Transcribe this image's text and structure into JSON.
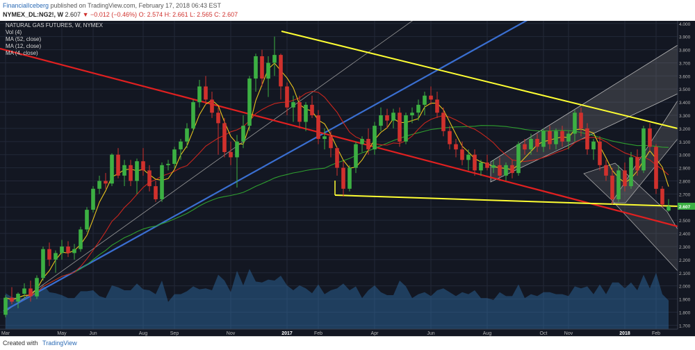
{
  "header": {
    "publisher": "FinancialIceberg",
    "published_text": "published on TradingView.com, February 17, 2018 06:43 EST",
    "symbol": "NYMEX_DL:NG2!, W",
    "price": "2.607",
    "change": "▼ −0.012 (−0.46%)",
    "ohlc": "O: 2.574 H: 2.661 L: 2.565 C: 2.607"
  },
  "footer": {
    "created_with": "Created with",
    "brand": "TradingView"
  },
  "chart_data": {
    "type": "candlestick",
    "title": "NATURAL GAS FUTURES, W, NYMEX",
    "legend": [
      "Vol (4)",
      "MA (52, close)",
      "MA (12, close)",
      "MA (4, close)"
    ],
    "y_ticks": [
      4.0,
      3.9,
      3.8,
      3.7,
      3.6,
      3.5,
      3.4,
      3.3,
      3.2,
      3.1,
      3.0,
      2.9,
      2.8,
      2.7,
      2.6,
      2.5,
      2.4,
      2.3,
      2.2,
      2.1,
      2.0,
      1.9,
      1.8,
      1.7
    ],
    "y_tick_labels": [
      "4.000",
      "3.900",
      "3.800",
      "3.700",
      "3.600",
      "3.500",
      "3.400",
      "3.300",
      "3.200",
      "3.100",
      "3.000",
      "2.900",
      "2.800",
      "2.700",
      "2.600",
      "2.500",
      "2.400",
      "2.300",
      "2.200",
      "2.100",
      "2.000",
      "1.900",
      "1.800",
      "1.700"
    ],
    "ylim": [
      1.67,
      4.02
    ],
    "last_price_label": "2.607",
    "x_labels": [
      {
        "label": "Mar",
        "i": 0
      },
      {
        "label": "May",
        "i": 9
      },
      {
        "label": "Jun",
        "i": 14
      },
      {
        "label": "Aug",
        "i": 22
      },
      {
        "label": "Sep",
        "i": 27
      },
      {
        "label": "Nov",
        "i": 36
      },
      {
        "label": "2017",
        "i": 45
      },
      {
        "label": "Feb",
        "i": 50
      },
      {
        "label": "Apr",
        "i": 59
      },
      {
        "label": "Jun",
        "i": 68
      },
      {
        "label": "Aug",
        "i": 77
      },
      {
        "label": "Oct",
        "i": 86
      },
      {
        "label": "Nov",
        "i": 90
      },
      {
        "label": "2018",
        "i": 99
      },
      {
        "label": "Feb",
        "i": 104
      }
    ],
    "candles": [
      [
        1.78,
        1.93,
        1.76,
        1.91
      ],
      [
        1.91,
        1.99,
        1.86,
        1.88
      ],
      [
        1.88,
        1.95,
        1.83,
        1.94
      ],
      [
        1.94,
        2.02,
        1.9,
        1.98
      ],
      [
        1.98,
        2.04,
        1.88,
        1.92
      ],
      [
        1.92,
        2.08,
        1.9,
        2.06
      ],
      [
        2.06,
        2.3,
        2.04,
        2.28
      ],
      [
        2.28,
        2.33,
        2.15,
        2.2
      ],
      [
        2.2,
        2.27,
        2.1,
        2.25
      ],
      [
        2.25,
        2.35,
        2.2,
        2.3
      ],
      [
        2.3,
        2.34,
        2.22,
        2.25
      ],
      [
        2.25,
        2.32,
        2.2,
        2.28
      ],
      [
        2.28,
        2.45,
        2.26,
        2.43
      ],
      [
        2.43,
        2.6,
        2.41,
        2.58
      ],
      [
        2.58,
        2.76,
        2.56,
        2.74
      ],
      [
        2.74,
        2.84,
        2.7,
        2.8
      ],
      [
        2.8,
        2.86,
        2.74,
        2.78
      ],
      [
        2.78,
        3.01,
        2.76,
        3.0
      ],
      [
        3.0,
        3.05,
        2.82,
        2.84
      ],
      [
        2.84,
        2.96,
        2.76,
        2.92
      ],
      [
        2.92,
        2.96,
        2.76,
        2.8
      ],
      [
        2.8,
        2.97,
        2.7,
        2.95
      ],
      [
        2.95,
        3.05,
        2.84,
        2.88
      ],
      [
        2.88,
        2.92,
        2.72,
        2.76
      ],
      [
        2.76,
        2.8,
        2.64,
        2.66
      ],
      [
        2.66,
        2.94,
        2.64,
        2.92
      ],
      [
        2.92,
        2.96,
        2.88,
        2.93
      ],
      [
        2.93,
        3.06,
        2.9,
        3.04
      ],
      [
        3.04,
        3.12,
        2.96,
        3.1
      ],
      [
        3.1,
        3.24,
        3.05,
        3.2
      ],
      [
        3.2,
        3.42,
        3.18,
        3.4
      ],
      [
        3.4,
        3.57,
        3.36,
        3.52
      ],
      [
        3.52,
        3.6,
        3.38,
        3.42
      ],
      [
        3.42,
        3.48,
        3.28,
        3.32
      ],
      [
        3.32,
        3.36,
        3.0,
        3.24
      ],
      [
        3.24,
        3.28,
        2.98,
        3.02
      ],
      [
        3.02,
        3.1,
        2.92,
        2.98
      ],
      [
        2.98,
        3.15,
        2.75,
        3.1
      ],
      [
        3.1,
        3.3,
        3.05,
        3.22
      ],
      [
        3.22,
        3.6,
        3.18,
        3.58
      ],
      [
        3.58,
        3.77,
        3.48,
        3.75
      ],
      [
        3.75,
        3.8,
        3.52,
        3.58
      ],
      [
        3.58,
        3.75,
        3.44,
        3.7
      ],
      [
        3.7,
        3.9,
        3.6,
        3.76
      ],
      [
        3.76,
        3.77,
        3.42,
        3.52
      ],
      [
        3.52,
        3.55,
        3.3,
        3.36
      ],
      [
        3.36,
        3.45,
        3.25,
        3.4
      ],
      [
        3.4,
        3.45,
        3.2,
        3.25
      ],
      [
        3.25,
        3.4,
        3.18,
        3.38
      ],
      [
        3.38,
        3.45,
        3.28,
        3.3
      ],
      [
        3.3,
        3.34,
        3.08,
        3.12
      ],
      [
        3.12,
        3.2,
        3.04,
        3.14
      ],
      [
        3.14,
        3.18,
        2.98,
        3.05
      ],
      [
        3.05,
        3.06,
        2.84,
        2.9
      ],
      [
        2.9,
        2.95,
        2.68,
        2.74
      ],
      [
        2.74,
        2.92,
        2.72,
        2.9
      ],
      [
        2.9,
        3.1,
        2.86,
        3.08
      ],
      [
        3.08,
        3.14,
        3.02,
        3.12
      ],
      [
        3.12,
        3.2,
        3.0,
        3.04
      ],
      [
        3.04,
        3.25,
        3.0,
        3.22
      ],
      [
        3.22,
        3.36,
        3.18,
        3.3
      ],
      [
        3.3,
        3.35,
        3.2,
        3.26
      ],
      [
        3.26,
        3.35,
        3.2,
        3.32
      ],
      [
        3.32,
        3.36,
        3.06,
        3.1
      ],
      [
        3.1,
        3.32,
        3.08,
        3.3
      ],
      [
        3.3,
        3.36,
        3.24,
        3.32
      ],
      [
        3.32,
        3.42,
        3.26,
        3.38
      ],
      [
        3.38,
        3.48,
        3.3,
        3.45
      ],
      [
        3.45,
        3.52,
        3.38,
        3.42
      ],
      [
        3.42,
        3.48,
        3.28,
        3.32
      ],
      [
        3.32,
        3.36,
        3.14,
        3.18
      ],
      [
        3.18,
        3.22,
        3.04,
        3.08
      ],
      [
        3.08,
        3.12,
        2.98,
        3.04
      ],
      [
        3.04,
        3.1,
        2.92,
        2.96
      ],
      [
        2.96,
        3.04,
        2.88,
        3.0
      ],
      [
        3.0,
        3.04,
        2.84,
        2.88
      ],
      [
        2.88,
        2.96,
        2.84,
        2.94
      ],
      [
        2.94,
        3.0,
        2.88,
        2.9
      ],
      [
        2.9,
        2.96,
        2.86,
        2.92
      ],
      [
        2.92,
        2.98,
        2.8,
        2.84
      ],
      [
        2.84,
        2.94,
        2.8,
        2.92
      ],
      [
        2.92,
        2.96,
        2.82,
        2.86
      ],
      [
        2.86,
        3.1,
        2.84,
        3.08
      ],
      [
        3.08,
        3.12,
        3.0,
        3.04
      ],
      [
        3.04,
        3.16,
        3.0,
        3.12
      ],
      [
        3.12,
        3.16,
        3.02,
        3.06
      ],
      [
        3.06,
        3.2,
        3.02,
        3.18
      ],
      [
        3.18,
        3.22,
        3.04,
        3.08
      ],
      [
        3.08,
        3.2,
        3.04,
        3.18
      ],
      [
        3.18,
        3.22,
        3.06,
        3.1
      ],
      [
        3.1,
        3.18,
        3.04,
        3.16
      ],
      [
        3.16,
        3.34,
        3.1,
        3.32
      ],
      [
        3.32,
        3.36,
        3.14,
        3.2
      ],
      [
        3.2,
        3.24,
        3.0,
        3.04
      ],
      [
        3.04,
        3.12,
        2.96,
        3.1
      ],
      [
        3.1,
        3.14,
        2.88,
        2.92
      ],
      [
        2.92,
        2.96,
        2.8,
        2.84
      ],
      [
        2.84,
        2.9,
        2.62,
        2.66
      ],
      [
        2.66,
        2.92,
        2.64,
        2.88
      ],
      [
        2.88,
        2.94,
        2.72,
        2.76
      ],
      [
        2.76,
        3.02,
        2.74,
        2.98
      ],
      [
        2.98,
        3.04,
        2.84,
        2.88
      ],
      [
        2.88,
        3.22,
        2.86,
        3.2
      ],
      [
        3.2,
        3.24,
        3.02,
        3.06
      ],
      [
        3.06,
        3.08,
        2.7,
        2.74
      ],
      [
        2.74,
        2.76,
        2.6,
        2.62
      ],
      [
        2.574,
        2.661,
        2.565,
        2.607
      ]
    ],
    "volume_range": [
      0,
      1
    ]
  }
}
